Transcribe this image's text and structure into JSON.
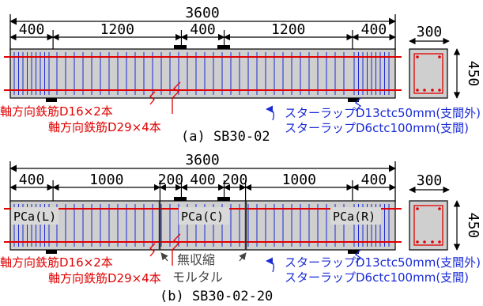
{
  "colors": {
    "beam_fill": "#cfcfcf",
    "rebar": "#e00000",
    "stirrup": "#1a2bd6",
    "joint": "#333333",
    "support": "#000000"
  },
  "figure_a": {
    "total": "3600",
    "dims": [
      "400",
      "1200",
      "400",
      "1200",
      "400"
    ],
    "section_width": "300",
    "section_height": "450",
    "label_rebar_top": "軸方向鉄筋D16×2本",
    "label_rebar_bottom": "軸方向鉄筋D29×4本",
    "label_stirrup_outer": "スターラップD13ctc50mm(支間外)",
    "label_stirrup_inner": "スターラップD6ctc100mm(支間)",
    "caption": "(a) SB30-02"
  },
  "figure_b": {
    "total": "3600",
    "dims": [
      "400",
      "1000",
      "200",
      "400",
      "200",
      "1000",
      "400"
    ],
    "section_width": "300",
    "section_height": "450",
    "segments": [
      "PCa(L)",
      "PCa(C)",
      "PCa(R)"
    ],
    "mortar_line1": "無収縮",
    "mortar_line2": "モルタル",
    "label_rebar_top": "軸方向鉄筋D16×2本",
    "label_rebar_bottom": "軸方向鉄筋D29×4本",
    "label_stirrup_outer": "スターラップD13ctc50mm(支間外)",
    "label_stirrup_inner": "スターラップD6ctc100mm(支間)",
    "caption": "(b) SB30-02-20"
  }
}
